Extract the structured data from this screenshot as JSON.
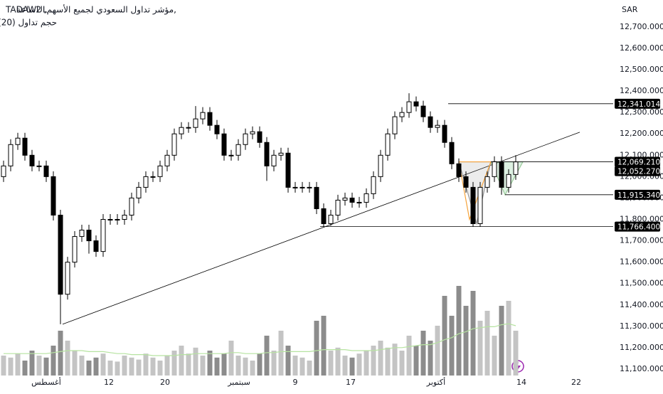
{
  "chart_data": {
    "type": "candlestick",
    "symbol": "TADAWUL",
    "title": "مؤشر تداول السعودي لجميع الأسهم, 2ساعة,",
    "subtitle": "حجم تداول (20)",
    "currency": "SAR",
    "xlim": [
      -0.5,
      85.7
    ],
    "xticks": [
      {
        "value": 6,
        "label": "أغسطس"
      },
      {
        "value": 14.8,
        "label": "12"
      },
      {
        "value": 22.7,
        "label": "20"
      },
      {
        "value": 33.1,
        "label": "سبتمبر"
      },
      {
        "value": 41,
        "label": "9"
      },
      {
        "value": 48.8,
        "label": "17"
      },
      {
        "value": 60.8,
        "label": "أكتوبر"
      },
      {
        "value": 72.8,
        "label": "14"
      },
      {
        "value": 80.5,
        "label": "22"
      }
    ],
    "ylim": [
      11070,
      12826
    ],
    "yticks": [
      {
        "value": 11100,
        "label": "11,100.000"
      },
      {
        "value": 11200,
        "label": "11,200.000"
      },
      {
        "value": 11300,
        "label": "11,300.000"
      },
      {
        "value": 11400,
        "label": "11,400.000"
      },
      {
        "value": 11500,
        "label": "11,500.000"
      },
      {
        "value": 11600,
        "label": "11,600.000"
      },
      {
        "value": 11700,
        "label": "11,700.000"
      },
      {
        "value": 11800,
        "label": "11,800.000"
      },
      {
        "value": 11900,
        "label": "11,900.000"
      },
      {
        "value": 12000,
        "label": "12,000.000"
      },
      {
        "value": 12100,
        "label": "12,100.000"
      },
      {
        "value": 12200,
        "label": "12,200.000"
      },
      {
        "value": 12300,
        "label": "12,300.000"
      },
      {
        "value": 12400,
        "label": "12,400.000"
      },
      {
        "value": 12500,
        "label": "12,500.000"
      },
      {
        "value": 12600,
        "label": "12,600.000"
      },
      {
        "value": 12700,
        "label": "12,700.000"
      }
    ],
    "up_color": "#ffffff",
    "down_color": "#000000",
    "open": [
      12000,
      12050,
      12150,
      12180,
      12100,
      12050,
      12050,
      12000,
      11820,
      11450,
      11600,
      11720,
      11750,
      11700,
      11650,
      11800,
      11800,
      11800,
      11820,
      11900,
      11950,
      12000,
      12000,
      12050,
      12100,
      12200,
      12230,
      12230,
      12270,
      12300,
      12240,
      12200,
      12100,
      12100,
      12150,
      12200,
      12210,
      12160,
      12050,
      12100,
      12110,
      11950,
      11950,
      11950,
      11950,
      11850,
      11780,
      11820,
      11890,
      11900,
      11880,
      11880,
      11920,
      12000,
      12100,
      12200,
      12280,
      12300,
      12350,
      12330,
      12280,
      12230,
      12240,
      12160,
      12060,
      12000,
      11950,
      11780,
      11950,
      12000,
      12070,
      11950,
      12010
    ],
    "high": [
      12075,
      12175,
      12205,
      12205,
      12125,
      12075,
      12075,
      12025,
      11845,
      11625,
      11745,
      11775,
      11775,
      11725,
      11825,
      11825,
      11825,
      11845,
      11925,
      11975,
      12025,
      12025,
      12075,
      12125,
      12225,
      12255,
      12255,
      12330,
      12325,
      12325,
      12265,
      12225,
      12125,
      12175,
      12225,
      12235,
      12235,
      12185,
      12125,
      12135,
      12135,
      11975,
      11975,
      11975,
      11975,
      11875,
      11845,
      11915,
      11925,
      11925,
      11905,
      11945,
      12025,
      12125,
      12225,
      12305,
      12325,
      12390,
      12375,
      12355,
      12305,
      12265,
      12265,
      12185,
      12085,
      12025,
      11975,
      11975,
      12025,
      12095,
      12095,
      12035,
      12100
    ],
    "low": [
      11975,
      12025,
      12125,
      12075,
      12025,
      12025,
      11975,
      11795,
      11310,
      11425,
      11575,
      11695,
      11640,
      11625,
      11625,
      11775,
      11775,
      11775,
      11795,
      11875,
      11925,
      11975,
      11975,
      12025,
      12075,
      12175,
      12205,
      12205,
      12245,
      12215,
      12175,
      12075,
      12075,
      12075,
      12125,
      12175,
      12135,
      11980,
      12025,
      12075,
      11925,
      11925,
      11925,
      11925,
      11825,
      11766,
      11770,
      11795,
      11865,
      11855,
      11855,
      11855,
      11895,
      11975,
      12075,
      12175,
      12255,
      12275,
      12305,
      12255,
      12205,
      12205,
      12135,
      12035,
      11975,
      11925,
      11766,
      11766,
      11925,
      11975,
      11915,
      11925,
      11985
    ],
    "close": [
      12050,
      12150,
      12180,
      12100,
      12050,
      12050,
      12000,
      11820,
      11450,
      11600,
      11720,
      11750,
      11700,
      11650,
      11800,
      11800,
      11800,
      11820,
      11900,
      11950,
      12000,
      12000,
      12050,
      12100,
      12200,
      12230,
      12230,
      12270,
      12300,
      12240,
      12200,
      12100,
      12100,
      12150,
      12200,
      12210,
      12160,
      12050,
      12100,
      12110,
      11950,
      11950,
      11950,
      11950,
      11850,
      11780,
      11820,
      11890,
      11900,
      11880,
      11880,
      11920,
      12000,
      12100,
      12200,
      12280,
      12300,
      12350,
      12330,
      12280,
      12230,
      12240,
      12160,
      12060,
      12000,
      11950,
      11780,
      11950,
      12000,
      12070,
      11950,
      12010,
      12069
    ],
    "volume": {
      "vlim": [
        0,
        100
      ],
      "up_color": "#c4c4c4",
      "down_color": "#8c8c8c",
      "values": [
        20,
        18,
        22,
        15,
        25,
        20,
        18,
        30,
        45,
        35,
        25,
        20,
        15,
        18,
        22,
        15,
        14,
        20,
        18,
        16,
        22,
        18,
        15,
        20,
        25,
        30,
        22,
        28,
        20,
        25,
        18,
        22,
        35,
        20,
        18,
        15,
        22,
        40,
        25,
        45,
        30,
        20,
        18,
        15,
        55,
        60,
        25,
        28,
        20,
        18,
        22,
        25,
        30,
        35,
        28,
        32,
        25,
        40,
        30,
        45,
        35,
        50,
        80,
        60,
        90,
        70,
        85,
        55,
        65,
        40,
        70,
        75,
        45
      ]
    },
    "volume_ma": {
      "color": "#b6e3a0",
      "values": [
        22,
        22,
        22,
        22,
        22,
        22,
        22,
        23,
        24,
        25,
        25,
        25,
        24,
        24,
        24,
        23,
        22,
        22,
        21,
        21,
        21,
        20,
        20,
        20,
        20,
        21,
        21,
        22,
        22,
        22,
        22,
        22,
        23,
        23,
        22,
        22,
        22,
        23,
        23,
        24,
        24,
        24,
        24,
        24,
        25,
        26,
        26,
        26,
        26,
        25,
        25,
        25,
        25,
        26,
        27,
        28,
        28,
        29,
        30,
        31,
        31,
        33,
        36,
        38,
        42,
        44,
        47,
        48,
        49,
        49,
        51,
        52,
        50
      ]
    },
    "trendline": {
      "x": [
        8.3,
        81
      ],
      "y": [
        11310,
        12208
      ],
      "color": "#000000"
    },
    "levels": [
      {
        "value": 12341.014,
        "label": "12,341.014",
        "from": 62.5
      },
      {
        "value": 12069.21,
        "label": "12,069.210",
        "from": 68.5
      },
      {
        "value": 11915.34,
        "label": "11,915.340",
        "from": 70.5
      },
      {
        "value": 11766.4,
        "label": "11,766.400",
        "from": 44.5
      }
    ],
    "last_price": {
      "value": 12052.27,
      "label": "12,052.270"
    },
    "patterns": [
      {
        "color": "#9a9a9a",
        "fill": "rgba(150,150,150,0.18)",
        "x": [
          64,
          66.5,
          68.5
        ],
        "y": [
          12069.21,
          11780,
          12069.21
        ]
      },
      {
        "color": "#9ccc9c",
        "fill": "rgba(120,200,140,0.25)",
        "x": [
          68.5,
          73,
          70.5
        ],
        "y": [
          12069.21,
          12069.21,
          11915.34
        ]
      },
      {
        "color": "#f5a23a",
        "fill": "none",
        "x": [
          64,
          65.5,
          68.5,
          64
        ],
        "y": [
          12069.21,
          11800,
          12069.21,
          12069.21
        ]
      }
    ]
  }
}
